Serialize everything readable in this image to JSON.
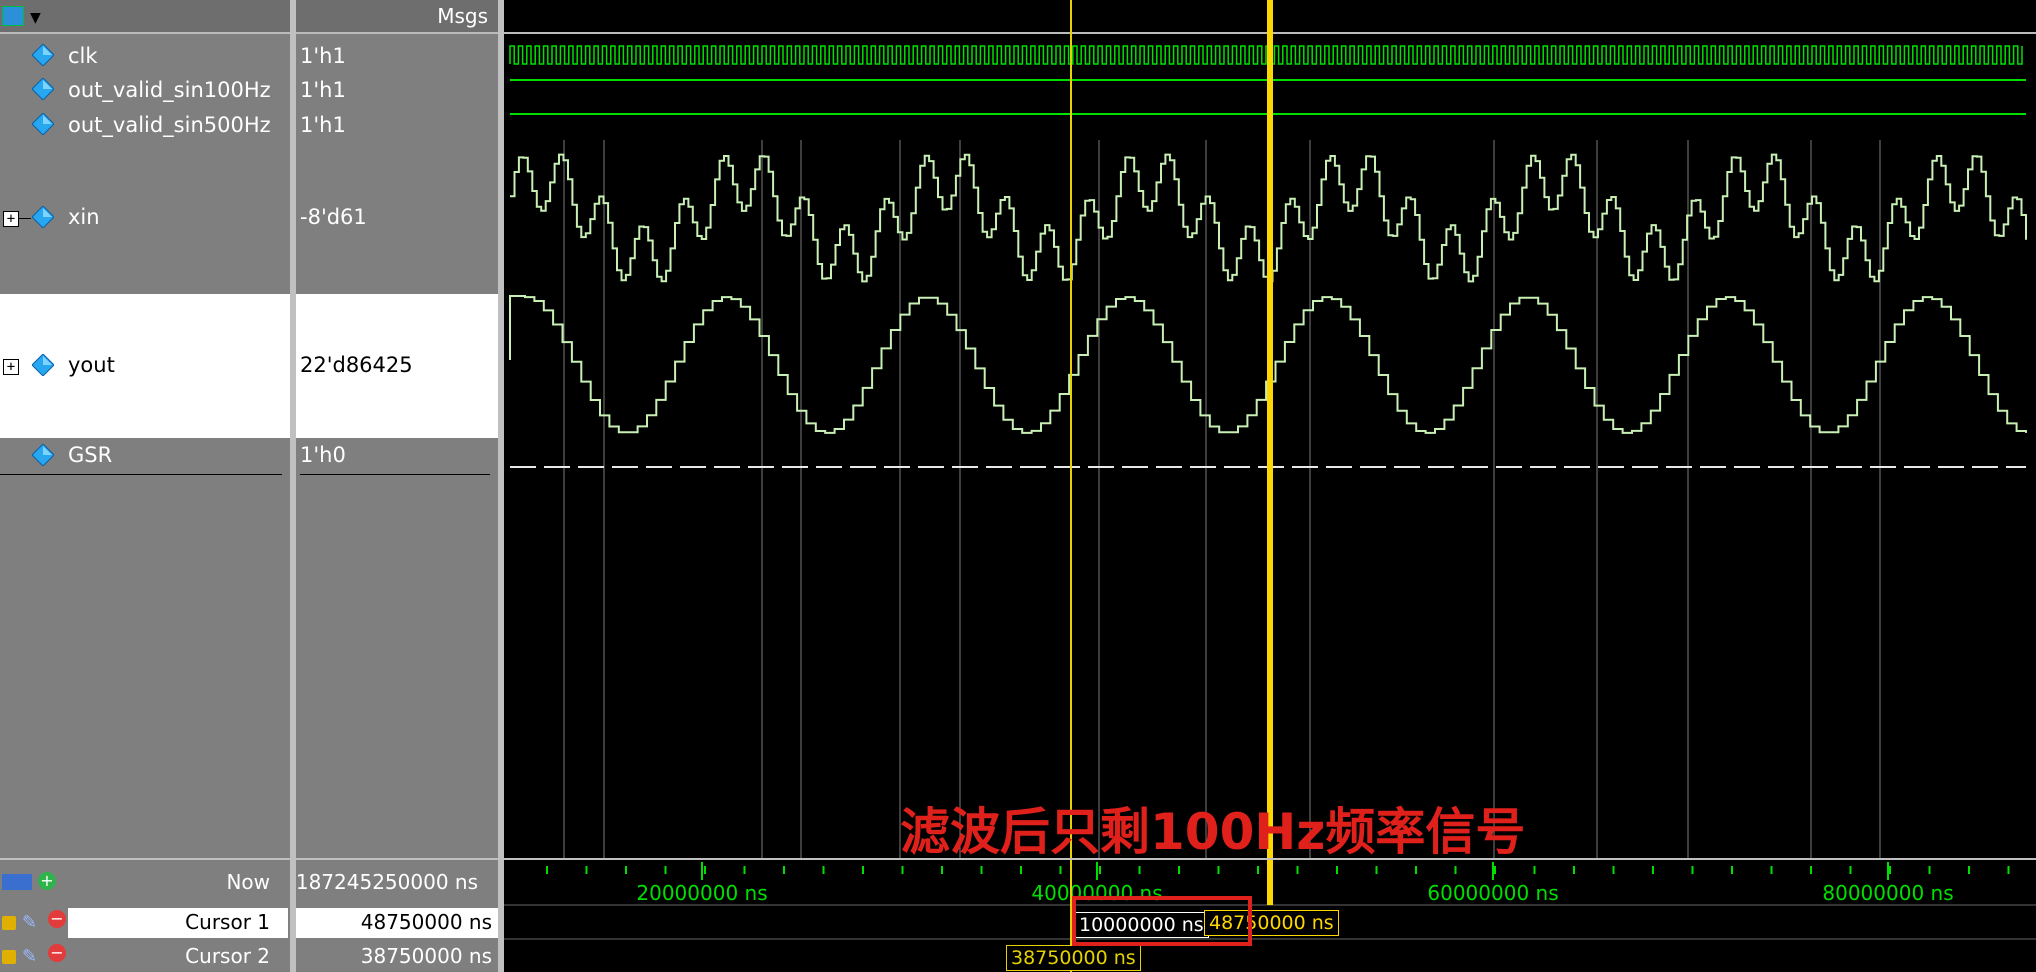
{
  "header": {
    "msgs_label": "Msgs"
  },
  "signals": [
    {
      "name": "clk",
      "value": "1'h1"
    },
    {
      "name": "out_valid_sin100Hz",
      "value": "1'h1"
    },
    {
      "name": "out_valid_sin500Hz",
      "value": "1'h1"
    },
    {
      "name": "xin",
      "value": "-8'd61"
    },
    {
      "name": "yout",
      "value": "22'd86425"
    },
    {
      "name": "GSR",
      "value": "1'h0"
    }
  ],
  "footer": {
    "now_label": "Now",
    "now_value": "187245250000 ns",
    "cursor1_label": "Cursor 1",
    "cursor1_value": "48750000 ns",
    "cursor2_label": "Cursor 2",
    "cursor2_value": "38750000 ns"
  },
  "timeline": {
    "ticks": [
      "20000000 ns",
      "40000000 ns",
      "60000000 ns",
      "80000000 ns"
    ],
    "delta_label": "10000000 ns",
    "cursor1_tag": "48750000 ns",
    "cursor2_tag": "38750000 ns"
  },
  "annotation": "滤波后只剩100Hz频率信号",
  "colors": {
    "wave": "#00e000",
    "wave_analog": "#c8f0b4",
    "cursor_primary": "#ffd700",
    "cursor_secondary": "#e6d200",
    "annotation_red": "#e0201a",
    "box_red": "#e0201a"
  }
}
